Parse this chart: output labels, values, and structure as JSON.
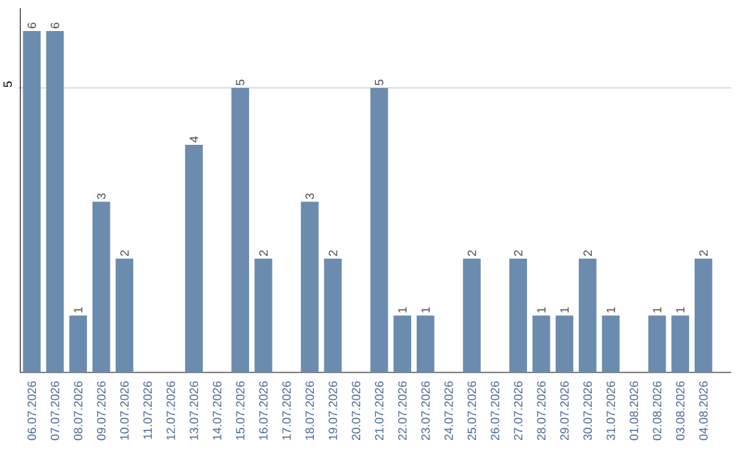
{
  "chart_data": {
    "type": "bar",
    "categories": [
      "06.07.2026",
      "07.07.2026",
      "08.07.2026",
      "09.07.2026",
      "10.07.2026",
      "11.07.2026",
      "12.07.2026",
      "13.07.2026",
      "14.07.2026",
      "15.07.2026",
      "16.07.2026",
      "17.07.2026",
      "18.07.2026",
      "19.07.2026",
      "20.07.2026",
      "21.07.2026",
      "22.07.2026",
      "23.07.2026",
      "24.07.2026",
      "25.07.2026",
      "26.07.2026",
      "27.07.2026",
      "28.07.2026",
      "29.07.2026",
      "30.07.2026",
      "31.07.2026",
      "01.08.2026",
      "02.08.2026",
      "03.08.2026",
      "04.08.2026"
    ],
    "values": [
      6,
      6,
      1,
      3,
      2,
      0,
      0,
      4,
      0,
      5,
      2,
      0,
      3,
      2,
      0,
      5,
      1,
      1,
      0,
      2,
      0,
      2,
      1,
      1,
      2,
      1,
      0,
      1,
      1,
      2
    ],
    "value_labels": [
      "6",
      "6",
      "1",
      "3",
      "2",
      null,
      null,
      "4",
      null,
      "5",
      "2",
      null,
      "3",
      "2",
      null,
      "5",
      "1",
      "1",
      null,
      "2",
      null,
      "2",
      "1",
      "1",
      "2",
      "1",
      null,
      "1",
      "1",
      "2"
    ],
    "color": "#6b8cae",
    "ylim": [
      0,
      6.4
    ],
    "yticks": [
      5
    ],
    "grid": "y"
  }
}
